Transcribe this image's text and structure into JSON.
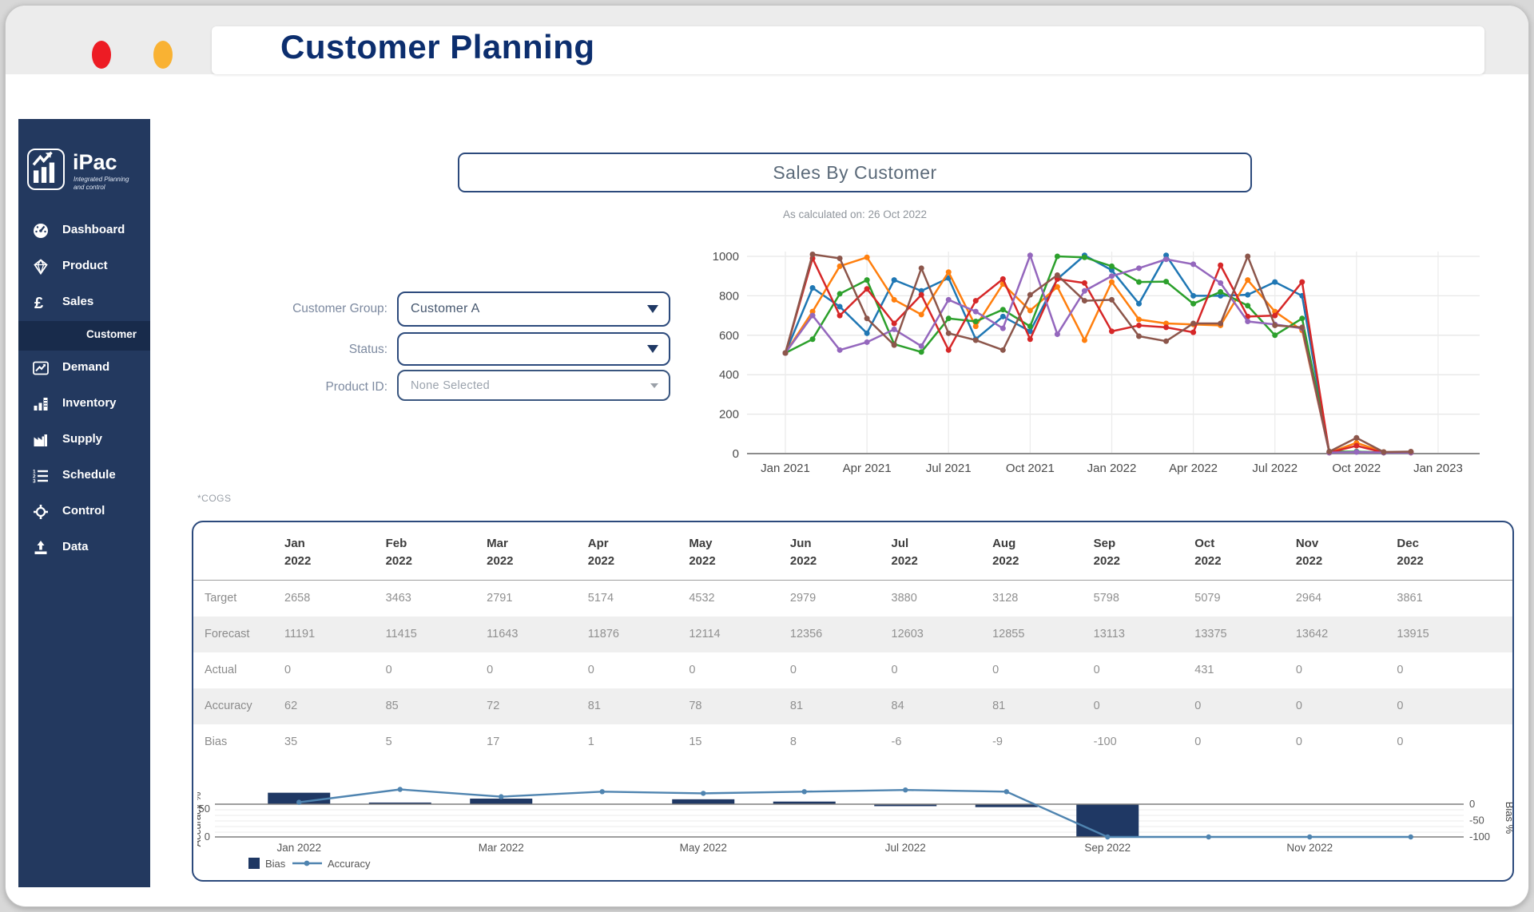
{
  "window": {
    "title": "Customer Planning",
    "traffic_lights": {
      "red": "#ed1c24",
      "yellow": "#f9b233",
      "green": "#22b14c"
    }
  },
  "sidebar": {
    "logo_name": "iPac",
    "logo_tagline_line1": "Integrated Planning",
    "logo_tagline_line2": "and control",
    "colors": {
      "background": "#23395f",
      "active_background": "#182b4b"
    },
    "items": [
      {
        "label": "Dashboard",
        "icon": "dashboard-icon",
        "active": false,
        "sub": false
      },
      {
        "label": "Product",
        "icon": "product-icon",
        "active": false,
        "sub": false
      },
      {
        "label": "Sales",
        "icon": "sales-icon",
        "active": false,
        "sub": false
      },
      {
        "label": "Customer",
        "icon": "",
        "active": true,
        "sub": true
      },
      {
        "label": "Demand",
        "icon": "demand-icon",
        "active": false,
        "sub": false
      },
      {
        "label": "Inventory",
        "icon": "inventory-icon",
        "active": false,
        "sub": false
      },
      {
        "label": "Supply",
        "icon": "supply-icon",
        "active": false,
        "sub": false
      },
      {
        "label": "Schedule",
        "icon": "schedule-icon",
        "active": false,
        "sub": false
      },
      {
        "label": "Control",
        "icon": "control-icon",
        "active": false,
        "sub": false
      },
      {
        "label": "Data",
        "icon": "data-icon",
        "active": false,
        "sub": false
      }
    ]
  },
  "main": {
    "section_title": "Sales By Customer",
    "subtitle": "As calculated on: 26 Oct 2022",
    "cogs_note": "*COGS",
    "filters": [
      {
        "label": "Customer Group:",
        "value": "Customer A",
        "caret": "solid"
      },
      {
        "label": "Status:",
        "value": "",
        "caret": "solid"
      },
      {
        "label": "Product ID:",
        "value": "None Selected",
        "caret": "small"
      }
    ]
  },
  "chart_data": [
    {
      "id": "sales-by-customer-trend",
      "type": "line",
      "title": "Sales By Customer",
      "x": [
        "Jan 2021",
        "Feb 2021",
        "Mar 2021",
        "Apr 2021",
        "May 2021",
        "Jun 2021",
        "Jul 2021",
        "Aug 2021",
        "Sep 2021",
        "Oct 2021",
        "Nov 2021",
        "Dec 2021",
        "Jan 2022",
        "Feb 2022",
        "Mar 2022",
        "Apr 2022",
        "May 2022",
        "Jun 2022",
        "Jul 2022",
        "Aug 2022",
        "Sep 2022",
        "Oct 2022",
        "Nov 2022",
        "Dec 2022"
      ],
      "series": [
        {
          "name": "series-1",
          "color": "#1f77b4",
          "values": [
            510,
            840,
            745,
            610,
            880,
            825,
            890,
            580,
            695,
            620,
            885,
            1005,
            930,
            760,
            1005,
            800,
            800,
            805,
            870,
            800,
            5,
            10,
            5,
            5
          ]
        },
        {
          "name": "series-2",
          "color": "#ff7f0e",
          "values": [
            510,
            720,
            950,
            995,
            780,
            705,
            920,
            645,
            860,
            725,
            845,
            575,
            870,
            680,
            660,
            655,
            650,
            880,
            720,
            625,
            5,
            55,
            8,
            5
          ]
        },
        {
          "name": "series-3",
          "color": "#2ca02c",
          "values": [
            510,
            580,
            810,
            880,
            555,
            515,
            685,
            670,
            730,
            645,
            1000,
            995,
            950,
            870,
            872,
            760,
            820,
            750,
            600,
            685,
            10,
            10,
            5,
            8
          ]
        },
        {
          "name": "series-4",
          "color": "#d62728",
          "values": [
            510,
            990,
            700,
            835,
            660,
            805,
            525,
            775,
            885,
            580,
            885,
            865,
            620,
            650,
            640,
            615,
            955,
            695,
            700,
            870,
            5,
            40,
            5,
            5
          ]
        },
        {
          "name": "series-5",
          "color": "#9467bd",
          "values": [
            510,
            700,
            525,
            565,
            630,
            545,
            780,
            720,
            635,
            1005,
            605,
            825,
            900,
            940,
            985,
            960,
            865,
            670,
            655,
            635,
            5,
            8,
            5,
            5
          ]
        },
        {
          "name": "series-6",
          "color": "#8c564b",
          "values": [
            510,
            1010,
            990,
            685,
            550,
            940,
            610,
            575,
            525,
            805,
            905,
            775,
            780,
            595,
            570,
            660,
            660,
            1000,
            650,
            640,
            10,
            80,
            8,
            10
          ]
        }
      ],
      "ylim": [
        0,
        1000
      ],
      "yticks": [
        0,
        200,
        400,
        600,
        800,
        1000
      ],
      "xticks": [
        "Jan 2021",
        "Apr 2021",
        "Jul 2021",
        "Oct 2021",
        "Jan 2022",
        "Apr 2022",
        "Jul 2022",
        "Oct 2022",
        "Jan 2023"
      ],
      "grid": true,
      "legend": "none"
    },
    {
      "id": "bias-accuracy-combo",
      "type": "bar+line",
      "categories": [
        "Jan 2022",
        "Feb 2022",
        "Mar 2022",
        "Apr 2022",
        "May 2022",
        "Jun 2022",
        "Jul 2022",
        "Aug 2022",
        "Sep 2022",
        "Oct 2022",
        "Nov 2022",
        "Dec 2022"
      ],
      "series": [
        {
          "name": "Bias",
          "chart": "bar",
          "axis": "right",
          "color": "#1f3864",
          "values": [
            35,
            5,
            17,
            1,
            15,
            8,
            -6,
            -9,
            -100,
            0,
            0,
            0
          ]
        },
        {
          "name": "Accuracy",
          "chart": "line",
          "axis": "left",
          "color": "#4f84b0",
          "values": [
            62,
            85,
            72,
            81,
            78,
            81,
            84,
            81,
            0,
            0,
            0,
            0
          ]
        }
      ],
      "left_axis": {
        "label": "Accuracy %",
        "ticks": [
          0,
          50
        ],
        "range": [
          0,
          100
        ]
      },
      "right_axis": {
        "label": "Bias %",
        "ticks": [
          0,
          -50,
          -100
        ],
        "range": [
          -100,
          0
        ]
      },
      "xticks": [
        "Jan 2022",
        "Mar 2022",
        "May 2022",
        "Jul 2022",
        "Sep 2022",
        "Nov 2022"
      ],
      "grid": true,
      "legend": [
        "Bias",
        "Accuracy"
      ],
      "legend_position": "bottom-left"
    }
  ],
  "table": {
    "columns": [
      {
        "month": "Jan",
        "year": "2022"
      },
      {
        "month": "Feb",
        "year": "2022"
      },
      {
        "month": "Mar",
        "year": "2022"
      },
      {
        "month": "Apr",
        "year": "2022"
      },
      {
        "month": "May",
        "year": "2022"
      },
      {
        "month": "Jun",
        "year": "2022"
      },
      {
        "month": "Jul",
        "year": "2022"
      },
      {
        "month": "Aug",
        "year": "2022"
      },
      {
        "month": "Sep",
        "year": "2022"
      },
      {
        "month": "Oct",
        "year": "2022"
      },
      {
        "month": "Nov",
        "year": "2022"
      },
      {
        "month": "Dec",
        "year": "2022"
      }
    ],
    "rows": [
      {
        "label": "Target",
        "values": [
          2658,
          3463,
          2791,
          5174,
          4532,
          2979,
          3880,
          3128,
          5798,
          5079,
          2964,
          3861
        ]
      },
      {
        "label": "Forecast",
        "values": [
          11191,
          11415,
          11643,
          11876,
          12114,
          12356,
          12603,
          12855,
          13113,
          13375,
          13642,
          13915
        ]
      },
      {
        "label": "Actual",
        "values": [
          0,
          0,
          0,
          0,
          0,
          0,
          0,
          0,
          0,
          431,
          0,
          0
        ]
      },
      {
        "label": "Accuracy",
        "values": [
          62,
          85,
          72,
          81,
          78,
          81,
          84,
          81,
          0,
          0,
          0,
          0
        ]
      },
      {
        "label": "Bias",
        "values": [
          35,
          5,
          17,
          1,
          15,
          8,
          -6,
          -9,
          -100,
          0,
          0,
          0
        ]
      }
    ]
  }
}
